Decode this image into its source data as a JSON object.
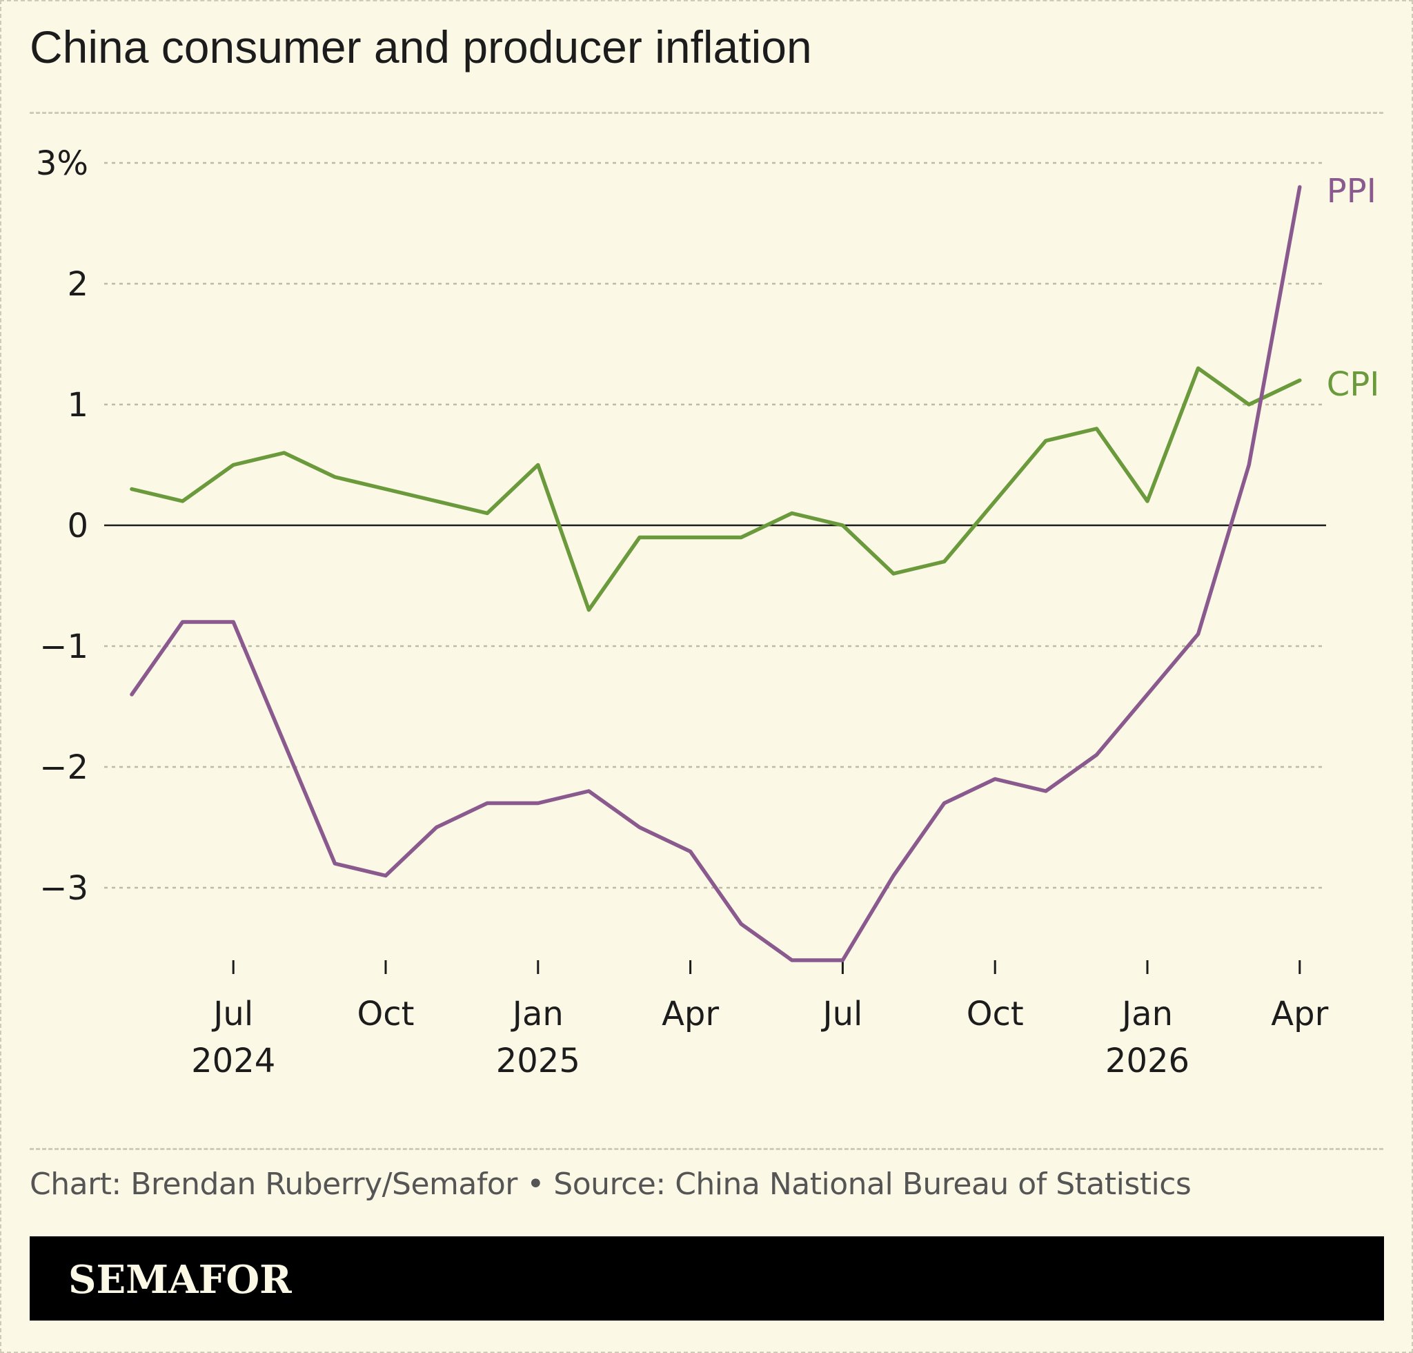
{
  "title": "China consumer and producer inflation",
  "credit": "Chart: Brendan Ruberry/Semafor • Source: China National Bureau of Statistics",
  "brand": "SEMAFOR",
  "colors": {
    "background": "#fbf8e6",
    "cpi": "#6b9a3c",
    "ppi": "#8a5a8e",
    "grid": "#bdbaa8",
    "zero_line": "#1c1c1c",
    "brand_bar": "#000000"
  },
  "chart_data": {
    "type": "line",
    "title": "China consumer and producer inflation",
    "x": [
      "2024-05",
      "2024-06",
      "2024-07",
      "2024-08",
      "2024-09",
      "2024-10",
      "2024-11",
      "2024-12",
      "2025-01",
      "2025-02",
      "2025-03",
      "2025-04",
      "2025-05",
      "2025-06",
      "2025-07",
      "2025-08",
      "2025-09",
      "2025-10",
      "2025-11",
      "2025-12",
      "2026-01",
      "2026-02",
      "2026-03",
      "2026-04"
    ],
    "series": [
      {
        "name": "CPI",
        "values": [
          0.3,
          0.2,
          0.5,
          0.6,
          0.4,
          0.3,
          0.2,
          0.1,
          0.5,
          -0.7,
          -0.1,
          -0.1,
          -0.1,
          0.1,
          0.0,
          -0.4,
          -0.3,
          0.2,
          0.7,
          0.8,
          0.2,
          1.3,
          1.0,
          1.2
        ]
      },
      {
        "name": "PPI",
        "values": [
          -1.4,
          -0.8,
          -0.8,
          -1.8,
          -2.8,
          -2.9,
          -2.5,
          -2.3,
          -2.3,
          -2.2,
          -2.5,
          -2.7,
          -3.3,
          -3.6,
          -3.6,
          -2.9,
          -2.3,
          -2.1,
          -2.2,
          -1.9,
          -1.4,
          -0.9,
          0.5,
          2.8
        ]
      }
    ],
    "ylim": [
      -3.6,
      3.0
    ],
    "y_ticks": [
      {
        "value": 3,
        "label": "3%"
      },
      {
        "value": 2,
        "label": "2"
      },
      {
        "value": 1,
        "label": "1"
      },
      {
        "value": 0,
        "label": "0"
      },
      {
        "value": -1,
        "label": "−1"
      },
      {
        "value": -2,
        "label": "−2"
      },
      {
        "value": -3,
        "label": "−3"
      }
    ],
    "x_ticks": [
      {
        "month": "2024-07",
        "label": "Jul",
        "year": "2024"
      },
      {
        "month": "2024-10",
        "label": "Oct",
        "year": ""
      },
      {
        "month": "2025-01",
        "label": "Jan",
        "year": "2025"
      },
      {
        "month": "2025-04",
        "label": "Apr",
        "year": ""
      },
      {
        "month": "2025-07",
        "label": "Jul",
        "year": ""
      },
      {
        "month": "2025-10",
        "label": "Oct",
        "year": ""
      },
      {
        "month": "2026-01",
        "label": "Jan",
        "year": "2026"
      },
      {
        "month": "2026-04",
        "label": "Apr",
        "year": ""
      }
    ],
    "grid": true,
    "legend": "direct labels at line ends"
  }
}
